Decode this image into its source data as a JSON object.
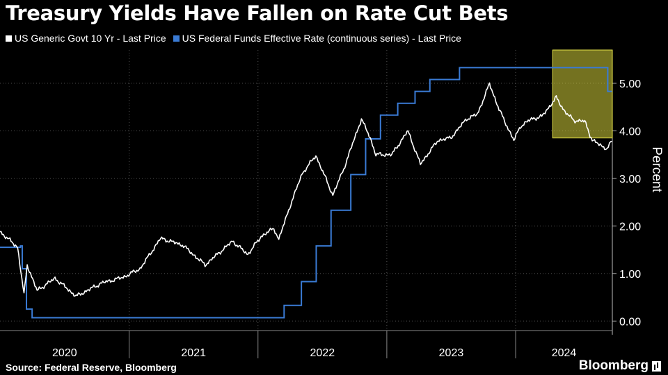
{
  "title": "Treasury Yields Have Fallen on Rate Cut Bets",
  "source": "Source: Federal Reserve, Bloomberg",
  "brand": "Bloomberg",
  "colors": {
    "background": "#000000",
    "yield": "#ffffff",
    "fedfunds": "#3a7bd5",
    "highlight": "#d4d03a"
  },
  "chart_data": {
    "type": "line",
    "ylabel": "Percent",
    "ylim": [
      -0.2,
      5.7
    ],
    "xlim": [
      "2020-01-01",
      "2024-10-01"
    ],
    "grid": true,
    "legend_position": "top-left",
    "y_ticks": [
      "0.00",
      "1.00",
      "2.00",
      "3.00",
      "4.00",
      "5.00"
    ],
    "y_tick_values": [
      0,
      1,
      2,
      3,
      4,
      5
    ],
    "x_ticks": [
      "2020",
      "2021",
      "2022",
      "2023",
      "2024"
    ],
    "highlight": {
      "x": [
        "2024-04-15",
        "2024-10-01"
      ],
      "y": [
        3.85,
        5.7
      ]
    },
    "series": [
      {
        "name": "US Generic Govt 10 Yr - Last Price",
        "color": "#ffffff",
        "x": [
          "2020-01-01",
          "2020-02-20",
          "2020-03-09",
          "2020-03-18",
          "2020-04-15",
          "2020-06-05",
          "2020-08-04",
          "2020-10-15",
          "2020-12-15",
          "2021-02-01",
          "2021-03-31",
          "2021-06-01",
          "2021-08-04",
          "2021-10-21",
          "2021-12-03",
          "2022-01-10",
          "2022-02-15",
          "2022-03-01",
          "2022-04-01",
          "2022-05-06",
          "2022-06-14",
          "2022-08-01",
          "2022-09-01",
          "2022-10-21",
          "2022-11-15",
          "2022-12-01",
          "2023-01-15",
          "2023-03-02",
          "2023-04-06",
          "2023-05-26",
          "2023-07-01",
          "2023-08-15",
          "2023-09-15",
          "2023-10-19",
          "2023-11-15",
          "2023-12-27",
          "2024-01-15",
          "2024-02-15",
          "2024-03-15",
          "2024-04-25",
          "2024-05-20",
          "2024-06-14",
          "2024-07-15",
          "2024-08-05",
          "2024-09-16",
          "2024-09-30"
        ],
        "values": [
          1.88,
          1.55,
          0.55,
          1.18,
          0.64,
          0.9,
          0.52,
          0.8,
          0.92,
          1.1,
          1.74,
          1.6,
          1.18,
          1.68,
          1.4,
          1.78,
          1.95,
          1.72,
          2.4,
          3.1,
          3.48,
          2.65,
          3.2,
          4.25,
          3.85,
          3.5,
          3.5,
          4.0,
          3.3,
          3.8,
          3.85,
          4.25,
          4.35,
          4.99,
          4.45,
          3.8,
          4.1,
          4.25,
          4.3,
          4.7,
          4.4,
          4.22,
          4.2,
          3.8,
          3.62,
          3.78
        ]
      },
      {
        "name": "US Federal Funds Effective Rate (continuous series) - Last Price",
        "color": "#3a7bd5",
        "x": [
          "2020-01-01",
          "2020-02-28",
          "2020-03-04",
          "2020-03-16",
          "2020-04-01",
          "2022-03-16",
          "2022-05-04",
          "2022-06-15",
          "2022-07-27",
          "2022-09-21",
          "2022-11-02",
          "2022-12-14",
          "2023-02-01",
          "2023-03-22",
          "2023-05-03",
          "2023-07-26",
          "2024-09-18",
          "2024-09-30"
        ],
        "values": [
          1.55,
          1.58,
          1.1,
          0.25,
          0.07,
          0.33,
          0.83,
          1.58,
          2.33,
          3.08,
          3.83,
          4.33,
          4.58,
          4.83,
          5.08,
          5.33,
          4.83,
          4.83
        ]
      }
    ]
  }
}
